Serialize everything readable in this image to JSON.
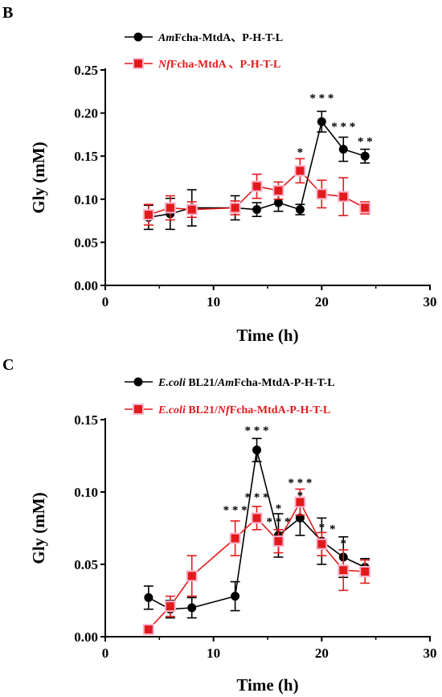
{
  "figure": {
    "panels": [
      {
        "letter": "B"
      },
      {
        "letter": "C"
      }
    ]
  },
  "chart_data": [
    {
      "panel": "B",
      "type": "line",
      "xlabel": "Time (h)",
      "ylabel": "Gly (mM)",
      "xlim": [
        0,
        30
      ],
      "ylim": [
        0,
        0.25
      ],
      "xticks": [
        "0",
        "10",
        "20",
        "30"
      ],
      "yticks": [
        "0.00",
        "0.05",
        "0.10",
        "0.15",
        "0.20",
        "0.25"
      ],
      "legend_position": "top-left",
      "grid": false,
      "series": [
        {
          "name_italic": "Am",
          "name_rest": "Fcha-MtdA、P-H-T-L",
          "color": "#000000",
          "marker": "circle",
          "x": [
            4,
            6,
            8,
            12,
            14,
            16,
            18,
            20,
            22,
            24
          ],
          "y": [
            0.079,
            0.083,
            0.09,
            0.09,
            0.088,
            0.096,
            0.088,
            0.19,
            0.158,
            0.15
          ],
          "err": [
            0.014,
            0.018,
            0.021,
            0.014,
            0.008,
            0.01,
            0.006,
            0.012,
            0.014,
            0.008
          ]
        },
        {
          "name_italic": "Nf",
          "name_rest": "Fcha-MtdA 、P-H-T-L",
          "color": "#e31a1c",
          "marker": "square",
          "x": [
            4,
            6,
            8,
            12,
            14,
            16,
            18,
            20,
            22,
            24
          ],
          "y": [
            0.082,
            0.09,
            0.088,
            0.09,
            0.115,
            0.11,
            0.133,
            0.106,
            0.103,
            0.09
          ],
          "err": [
            0.012,
            0.014,
            0.009,
            0.008,
            0.014,
            0.01,
            0.014,
            0.016,
            0.022,
            0.007
          ]
        }
      ],
      "annotations": [
        {
          "x": 18,
          "y": 0.15,
          "text": "*"
        },
        {
          "x": 20,
          "y": 0.213,
          "text": "* * *"
        },
        {
          "x": 22,
          "y": 0.18,
          "text": "* * *"
        },
        {
          "x": 24,
          "y": 0.163,
          "text": "* *"
        }
      ]
    },
    {
      "panel": "C",
      "type": "line",
      "xlabel": "Time (h)",
      "ylabel": "Gly (mM)",
      "xlim": [
        0,
        30
      ],
      "ylim": [
        0,
        0.15
      ],
      "xticks": [
        "0",
        "10",
        "20",
        "30"
      ],
      "yticks": [
        "0.00",
        "0.05",
        "0.10",
        "0.15"
      ],
      "legend_position": "top-left",
      "grid": false,
      "series": [
        {
          "name_italic": "E.coli",
          "name_mid": " BL21/",
          "name_italic2": "Am",
          "name_rest": "Fcha-MtdA-P-H-T-L",
          "color": "#000000",
          "marker": "circle",
          "x": [
            4,
            6,
            8,
            12,
            14,
            16,
            18,
            20,
            22,
            24
          ],
          "y": [
            0.027,
            0.019,
            0.02,
            0.028,
            0.129,
            0.07,
            0.082,
            0.066,
            0.055,
            0.048
          ],
          "err": [
            0.008,
            0.006,
            0.007,
            0.01,
            0.008,
            0.015,
            0.012,
            0.016,
            0.014,
            0.006
          ]
        },
        {
          "name_italic": "E.coli",
          "name_mid": " BL21/",
          "name_italic2": "Nf",
          "name_rest": "Fcha-MtdA-P-H-T-L",
          "color": "#e31a1c",
          "marker": "square",
          "x": [
            4,
            6,
            8,
            12,
            14,
            16,
            18,
            20,
            22,
            24
          ],
          "y": [
            0.005,
            0.021,
            0.042,
            0.068,
            0.082,
            0.066,
            0.093,
            0.064,
            0.046,
            0.045
          ],
          "err": [
            0.003,
            0.007,
            0.014,
            0.012,
            0.008,
            0.008,
            0.009,
            0.008,
            0.014,
            0.008
          ]
        }
      ],
      "annotations": [
        {
          "x": 12,
          "y": 0.085,
          "text": "* * *"
        },
        {
          "x": 14,
          "y": 0.14,
          "text": "* * *"
        },
        {
          "x": 14,
          "y": 0.094,
          "text": "* * *"
        },
        {
          "x": 16,
          "y": 0.086,
          "text": "*"
        },
        {
          "x": 16,
          "y": 0.077,
          "text": "* * *"
        },
        {
          "x": 18,
          "y": 0.104,
          "text": "* * *"
        },
        {
          "x": 18,
          "y": 0.095,
          "text": "*"
        },
        {
          "x": 20,
          "y": 0.073,
          "text": "*"
        },
        {
          "x": 21,
          "y": 0.072,
          "text": "*"
        },
        {
          "x": 22,
          "y": 0.062,
          "text": "*"
        }
      ]
    }
  ]
}
